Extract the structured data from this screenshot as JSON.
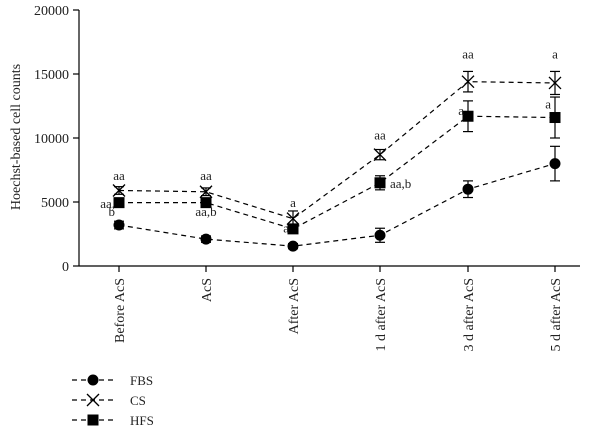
{
  "chart_data": {
    "type": "line",
    "ylabel": "Hoechst-based cell counts",
    "xlabel": "",
    "ylim": [
      0,
      20000
    ],
    "yticks": [
      0,
      5000,
      10000,
      15000,
      20000
    ],
    "ytick_labels": [
      "0",
      "5000",
      "10000",
      "15000",
      "20000"
    ],
    "categories": [
      "Before AcS",
      "AcS",
      "After AcS",
      "1 d after AcS",
      "3 d after AcS",
      "5 d after AcS"
    ],
    "series": [
      {
        "name": "FBS",
        "marker": "circle",
        "values": [
          3200,
          2100,
          1550,
          2400,
          6000,
          8000
        ],
        "errors": [
          300,
          250,
          200,
          550,
          650,
          1350
        ]
      },
      {
        "name": "CS",
        "marker": "x",
        "values": [
          5900,
          5800,
          3700,
          8700,
          14400,
          14300
        ],
        "errors": [
          300,
          300,
          600,
          400,
          800,
          900
        ]
      },
      {
        "name": "HFS",
        "marker": "square",
        "values": [
          4950,
          4950,
          2900,
          6500,
          11700,
          11600
        ],
        "errors": [
          200,
          300,
          300,
          550,
          1200,
          1600
        ]
      }
    ],
    "annotations": [
      {
        "text": "aa",
        "category": 0,
        "value": 6700,
        "anchor": "middle"
      },
      {
        "text": "aa,",
        "category": 0,
        "value": 4550,
        "anchor": "end"
      },
      {
        "text": "b",
        "category": 0,
        "value": 3900,
        "anchor": "end"
      },
      {
        "text": "aa",
        "category": 1,
        "value": 6700,
        "anchor": "middle"
      },
      {
        "text": "aa,b",
        "category": 1,
        "value": 3900,
        "anchor": "middle"
      },
      {
        "text": "a",
        "category": 2,
        "value": 4600,
        "anchor": "middle"
      },
      {
        "text": "a",
        "category": 2,
        "value": 2600,
        "anchor": "end"
      },
      {
        "text": "aa",
        "category": 3,
        "value": 9900,
        "anchor": "middle"
      },
      {
        "text": "aa,b",
        "category": 3,
        "value": 6100,
        "anchor": "start"
      },
      {
        "text": "aa",
        "category": 4,
        "value": 16200,
        "anchor": "middle"
      },
      {
        "text": "a",
        "category": 4,
        "value": 11800,
        "anchor": "end"
      },
      {
        "text": "a",
        "category": 5,
        "value": 16200,
        "anchor": "middle"
      },
      {
        "text": "a",
        "category": 5,
        "value": 12300,
        "anchor": "end"
      }
    ],
    "legend": {
      "placement": "bottom-left",
      "entries": [
        "FBS",
        "CS",
        "HFS"
      ]
    },
    "grid": false
  }
}
